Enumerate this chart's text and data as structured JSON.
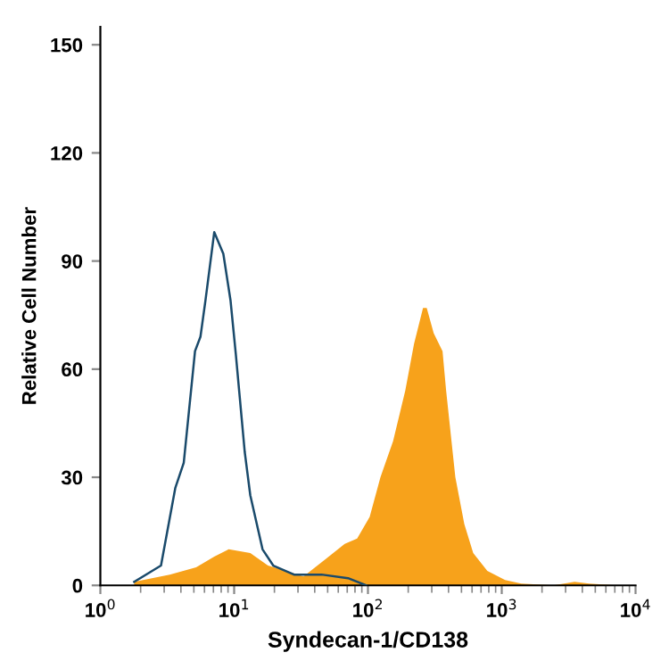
{
  "chart_data": {
    "type": "area",
    "xlabel": "Syndecan-1/CD138",
    "ylabel": "Relative Cell Number",
    "log": "x",
    "grid": false,
    "xlim": [
      1,
      10000
    ],
    "xticks": [
      {
        "value": 1,
        "label": "10$^{0}$"
      },
      {
        "value": 10,
        "label": "10$^{1}$"
      },
      {
        "value": 100,
        "label": "10$^{2}$"
      },
      {
        "value": 1000,
        "label": "10$^{3}$"
      },
      {
        "value": 10000,
        "label": "10$^{4}$"
      }
    ],
    "ylim": [
      0,
      155
    ],
    "yticks": [
      0,
      30,
      60,
      90,
      120,
      150
    ],
    "series": [
      {
        "color": "#f7a21b",
        "x": [
          1.79,
          3.3,
          5.2,
          7.1,
          9.1,
          13.2,
          17.9,
          24.4,
          33,
          49,
          67,
          83,
          103,
          124,
          154,
          190,
          221,
          258,
          275,
          310,
          361,
          384,
          450,
          525,
          612,
          780,
          1060,
          1400,
          2440,
          3500,
          4500,
          7200
        ],
        "values": [
          1,
          3,
          5,
          8,
          10,
          9,
          5.5,
          4,
          2.5,
          7.5,
          11.5,
          13,
          19,
          30,
          40,
          54,
          67,
          77,
          77,
          70,
          65,
          54,
          30,
          17,
          9,
          4,
          1.5,
          0.5,
          0,
          1,
          0.5,
          0
        ]
      },
      {
        "type": "line",
        "color": "#1a4a6b",
        "x": [
          1.79,
          2.84,
          3.63,
          4.2,
          5.1,
          5.6,
          6.1,
          7.1,
          8.3,
          9.4,
          10.3,
          12,
          13.2,
          16.3,
          19.6,
          28,
          45,
          71,
          97
        ],
        "values": [
          1,
          5.5,
          27,
          34,
          65,
          69,
          79,
          98,
          92,
          79,
          64,
          37,
          25,
          10,
          5.5,
          3,
          3,
          2,
          0
        ]
      }
    ]
  }
}
